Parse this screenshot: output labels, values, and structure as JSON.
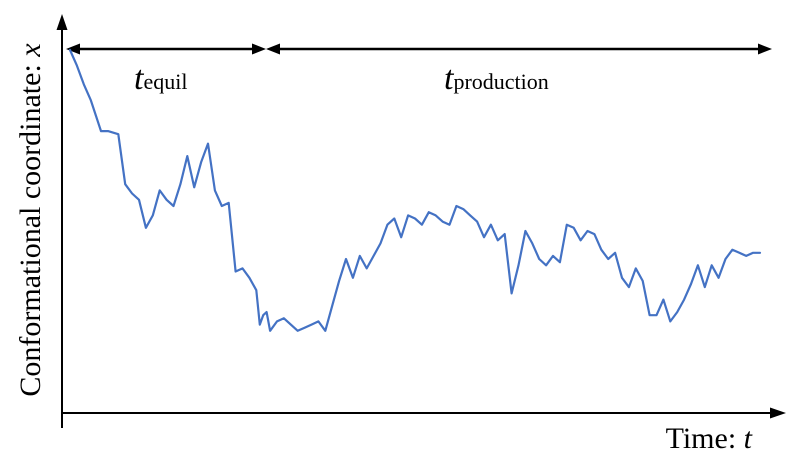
{
  "colors": {
    "axis": "#000000",
    "trace": "#4472C4"
  },
  "labels": {
    "y_axis_text": "Conformational coordinate: ",
    "y_axis_var": "x",
    "x_axis_text": "Time: ",
    "x_axis_var": "t",
    "equil_symbol": "t",
    "equil_subscript": "equil",
    "production_symbol": "t",
    "production_subscript": "production"
  },
  "segments": {
    "equil": [
      0,
      0.28
    ],
    "production": [
      0.28,
      1
    ]
  },
  "chart_data": {
    "type": "line",
    "xlabel": "Time: t",
    "ylabel": "Conformational coordinate: x",
    "grid": false,
    "series": [
      {
        "x": [
          0,
          0.01,
          0.02,
          0.03,
          0.045,
          0.055,
          0.07,
          0.08,
          0.09,
          0.1,
          0.11,
          0.12,
          0.13,
          0.14,
          0.15,
          0.16,
          0.17,
          0.18,
          0.19,
          0.2,
          0.21,
          0.22,
          0.23,
          0.24,
          0.25,
          0.26,
          0.27,
          0.275,
          0.28,
          0.285,
          0.29,
          0.3,
          0.31,
          0.32,
          0.33,
          0.34,
          0.35,
          0.36,
          0.37,
          0.38,
          0.39,
          0.4,
          0.41,
          0.42,
          0.43,
          0.44,
          0.45,
          0.46,
          0.47,
          0.48,
          0.49,
          0.5,
          0.51,
          0.52,
          0.53,
          0.54,
          0.55,
          0.56,
          0.57,
          0.58,
          0.59,
          0.6,
          0.61,
          0.62,
          0.63,
          0.64,
          0.65,
          0.66,
          0.67,
          0.68,
          0.69,
          0.7,
          0.71,
          0.72,
          0.73,
          0.74,
          0.75,
          0.76,
          0.77,
          0.78,
          0.79,
          0.8,
          0.81,
          0.82,
          0.83,
          0.84,
          0.85,
          0.86,
          0.87,
          0.88,
          0.89,
          0.9,
          0.91,
          0.92,
          0.93,
          0.94,
          0.95,
          0.96,
          0.97,
          0.98,
          0.99,
          1
        ],
        "y": [
          1,
          0.95,
          0.89,
          0.84,
          0.74,
          0.74,
          0.73,
          0.57,
          0.54,
          0.52,
          0.43,
          0.47,
          0.55,
          0.52,
          0.5,
          0.57,
          0.66,
          0.56,
          0.64,
          0.7,
          0.55,
          0.5,
          0.51,
          0.29,
          0.3,
          0.27,
          0.23,
          0.12,
          0.15,
          0.16,
          0.1,
          0.13,
          0.14,
          0.12,
          0.1,
          0.11,
          0.12,
          0.13,
          0.1,
          0.18,
          0.26,
          0.33,
          0.27,
          0.34,
          0.3,
          0.34,
          0.38,
          0.44,
          0.46,
          0.4,
          0.47,
          0.46,
          0.44,
          0.48,
          0.47,
          0.45,
          0.44,
          0.5,
          0.49,
          0.47,
          0.45,
          0.4,
          0.44,
          0.39,
          0.41,
          0.22,
          0.31,
          0.42,
          0.38,
          0.33,
          0.31,
          0.34,
          0.32,
          0.44,
          0.43,
          0.39,
          0.42,
          0.41,
          0.36,
          0.33,
          0.35,
          0.27,
          0.24,
          0.3,
          0.26,
          0.15,
          0.15,
          0.2,
          0.13,
          0.16,
          0.2,
          0.25,
          0.31,
          0.24,
          0.31,
          0.27,
          0.33,
          0.36,
          0.35,
          0.34,
          0.35,
          0.35
        ]
      }
    ]
  }
}
